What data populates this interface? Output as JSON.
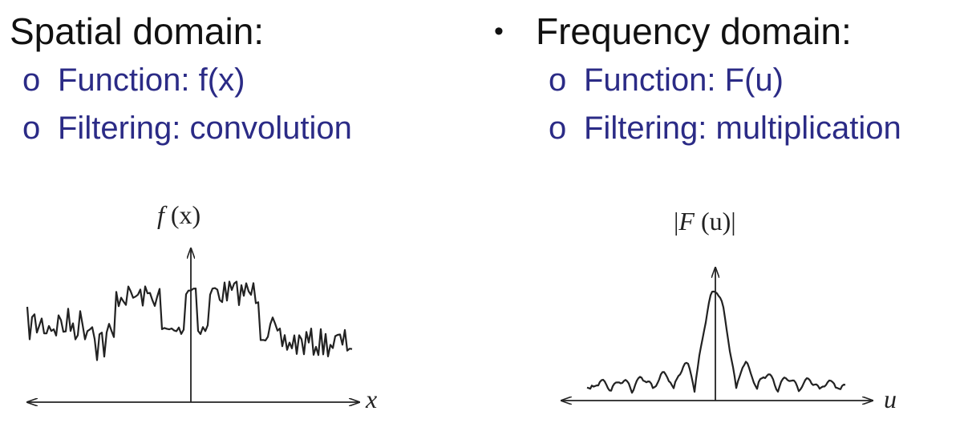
{
  "left": {
    "heading": "Spatial domain:",
    "items": [
      {
        "marker": "o",
        "text": "Function: f(x)"
      },
      {
        "marker": "o",
        "text": "Filtering: convolution"
      }
    ]
  },
  "right": {
    "bullet": "•",
    "heading": "Frequency domain:",
    "items": [
      {
        "marker": "o",
        "text": "Function: F(u)"
      },
      {
        "marker": "o",
        "text": "Filtering: multiplication"
      }
    ]
  },
  "spatial_plot": {
    "ylabel_func": "f",
    "ylabel_arg": "(x)",
    "xlabel": "x"
  },
  "frequency_plot": {
    "ylabel_bar_left": "|",
    "ylabel_func": "F",
    "ylabel_arg": "(u)",
    "ylabel_bar_right": "|",
    "xlabel": "u"
  },
  "colors": {
    "heading": "#111111",
    "subitem": "#2b2b86",
    "plot_line": "#222222"
  }
}
